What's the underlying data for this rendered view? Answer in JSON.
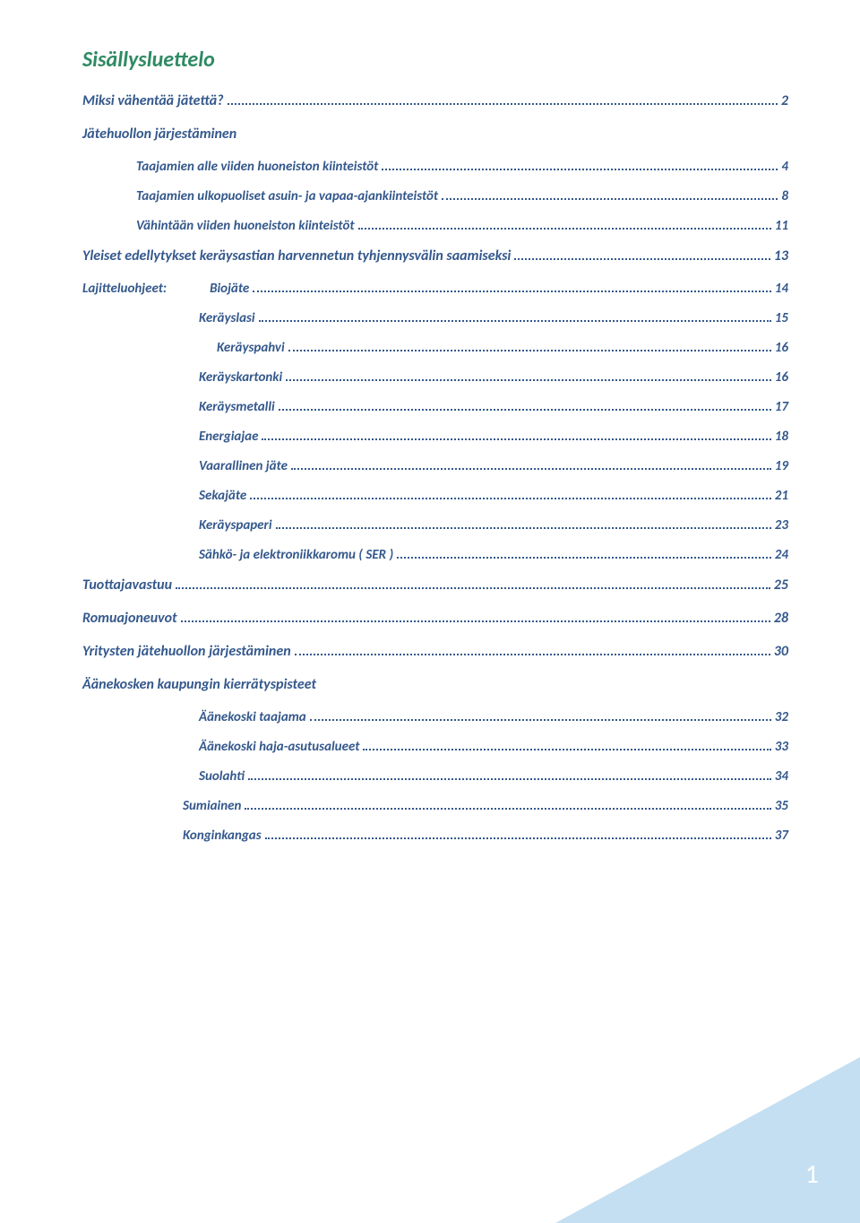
{
  "title": "Sisällysluettelo",
  "title_color": "#2e8a64",
  "main_color": "#34588c",
  "page_corner_color": "#c5dff2",
  "page_number": "1",
  "entries": [
    {
      "type": "main",
      "text": "Miksi vähentää jätettä?",
      "page": "2"
    },
    {
      "type": "section",
      "text": "Jätehuollon järjestäminen"
    },
    {
      "type": "sub",
      "text": "Taajamien alle viiden huoneiston kiinteistöt",
      "page": "4"
    },
    {
      "type": "sub",
      "text": "Taajamien ulkopuoliset asuin- ja vapaa-ajankiinteistöt",
      "page": "8"
    },
    {
      "type": "sub",
      "text": "Vähintään viiden huoneiston kiinteistöt",
      "page": "11"
    },
    {
      "type": "main",
      "text": "Yleiset edellytykset keräysastian harvennetun tyhjennysvälin saamiseksi",
      "page": "13"
    },
    {
      "type": "inline",
      "label": "Lajitteluohjeet:",
      "text": "Biojäte",
      "page": "14"
    },
    {
      "type": "sub2",
      "text": "Keräyslasi",
      "page": "15"
    },
    {
      "type": "sub3",
      "text": "Keräyspahvi",
      "page": "16"
    },
    {
      "type": "sub2",
      "text": "Keräyskartonki",
      "page": "16"
    },
    {
      "type": "sub2",
      "text": "Keräysmetalli",
      "page": "17"
    },
    {
      "type": "sub2",
      "text": "Energiajae",
      "page": "18"
    },
    {
      "type": "sub2",
      "text": "Vaarallinen jäte",
      "page": "19"
    },
    {
      "type": "sub2",
      "text": "Sekajäte",
      "page": "21"
    },
    {
      "type": "sub2",
      "text": "Keräyspaperi",
      "page": "23"
    },
    {
      "type": "sub2",
      "text": "Sähkö- ja elektroniikkaromu ( SER )",
      "page": "24"
    },
    {
      "type": "main",
      "text": "Tuottajavastuu",
      "page": "25"
    },
    {
      "type": "main",
      "text": "Romuajoneuvot",
      "page": "28"
    },
    {
      "type": "main",
      "text": "Yritysten jätehuollon järjestäminen",
      "page": "30"
    },
    {
      "type": "section",
      "text": "Äänekosken kaupungin kierrätyspisteet"
    },
    {
      "type": "sub2",
      "text": "Äänekoski taajama",
      "page": "32"
    },
    {
      "type": "sub2",
      "text": "Äänekoski haja-asutusalueet",
      "page": "33"
    },
    {
      "type": "sub2",
      "text": "Suolahti",
      "page": "34"
    },
    {
      "type": "sub2l",
      "text": "Sumiainen",
      "page": "35"
    },
    {
      "type": "sub2l",
      "text": "Konginkangas",
      "page": "37"
    }
  ]
}
